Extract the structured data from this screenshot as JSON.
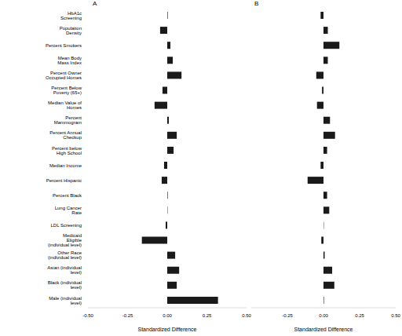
{
  "chart_data": [
    {
      "type": "bar",
      "title": "A",
      "orientation": "horizontal",
      "x_label": "Standardized Difference",
      "color": "#1a1a1a",
      "categories": [
        "HbA1c Screening",
        "Population Density",
        "Percent Smokers",
        "Mean Body Mass Index",
        "Percent Owner Occupied Homes",
        "Percent Below Poverty (65+)",
        "Median Value of Homes",
        "Percent Mammogram",
        "Percent Annual Checkup",
        "Percent below High School",
        "Median Income",
        "Percent Hispanic",
        "Percent Black",
        "Lung Cancer Rate",
        "LDL Screening",
        "Medicaid Eligible (individual level)",
        "Other Race (individual level)",
        "Asian (individual level)",
        "Black (individual level)",
        "Male (individual level)"
      ],
      "values": [
        0.003,
        -0.045,
        0.02,
        0.035,
        0.09,
        -0.03,
        -0.08,
        0.01,
        0.06,
        0.04,
        -0.02,
        -0.035,
        0.003,
        0.002,
        -0.01,
        -0.16,
        0.05,
        0.075,
        0.06,
        0.32
      ],
      "xlim": [
        -0.5,
        0.5
      ],
      "xticks": [
        {
          "value": -0.5,
          "label": "-0.50"
        },
        {
          "value": -0.25,
          "label": "-0.25"
        },
        {
          "value": 0,
          "label": "0.00"
        },
        {
          "value": 0.25,
          "label": "0.25"
        },
        {
          "value": 0.5,
          "label": "0.50"
        }
      ],
      "grid": false
    },
    {
      "type": "bar",
      "title": "B",
      "orientation": "horizontal",
      "x_label": "Standardized Difference",
      "color": "#1a1a1a",
      "tick_labels": "x",
      "categories": [
        "HbA1c Screening",
        "Population Density",
        "Percent Smokers",
        "Mean Body Mass Index",
        "Percent Owner Occupied Homes",
        "Percent Below Poverty (65+)",
        "Median Value of Homes",
        "Percent Mammogram",
        "Percent Annual Checkup",
        "Percent below High School",
        "Median Income",
        "Percent Hispanic",
        "Percent Black",
        "Lung Cancer Rate",
        "LDL Screening",
        "Medicaid Eligible (individual level)",
        "Other Race (individual level)",
        "Asian (individual level)",
        "Black (individual level)",
        "Male (individual level)"
      ],
      "values": [
        -0.02,
        0.03,
        0.11,
        0.03,
        -0.05,
        -0.01,
        -0.045,
        0.045,
        0.08,
        0.025,
        -0.02,
        -0.11,
        0.025,
        0.04,
        0.002,
        -0.015,
        0.008,
        0.06,
        0.075,
        0.003
      ],
      "xlim": [
        -0.5,
        0.5
      ],
      "xticks": [
        {
          "value": -0.5,
          "label": "-0.50"
        },
        {
          "value": -0.25,
          "label": "-0.25"
        },
        {
          "value": 0,
          "label": "0.00"
        },
        {
          "value": 0.25,
          "label": "0.25"
        },
        {
          "value": 0.5,
          "label": "0.50"
        }
      ],
      "grid": false
    }
  ]
}
